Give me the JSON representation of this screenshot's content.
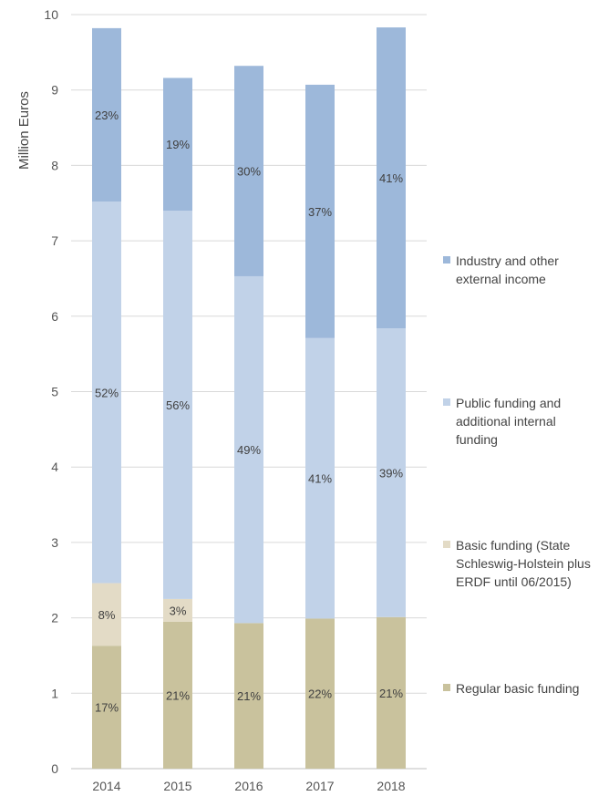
{
  "chart_data": {
    "type": "bar",
    "stacked": true,
    "title": "",
    "xlabel": "",
    "ylabel": "Million Euros",
    "ylim": [
      0,
      10
    ],
    "yticks": [
      0,
      1,
      2,
      3,
      4,
      5,
      6,
      7,
      8,
      9,
      10
    ],
    "categories": [
      "2014",
      "2015",
      "2016",
      "2017",
      "2018"
    ],
    "grid": true,
    "legend_position": "right",
    "series": [
      {
        "name": "Regular basic funding",
        "color": "#c9c29d",
        "values": [
          1.63,
          1.95,
          1.93,
          1.99,
          2.01
        ],
        "labels": [
          "17%",
          "21%",
          "21%",
          "22%",
          "21%"
        ]
      },
      {
        "name": "Basic funding (State Schleswig-Holstein plus ERDF until 06/2015)",
        "color": "#e3dbc6",
        "values": [
          0.83,
          0.3,
          0,
          0,
          0
        ],
        "labels": [
          "8%",
          "3%",
          "",
          "",
          ""
        ]
      },
      {
        "name": "Public funding and additional internal funding",
        "color": "#c1d2e8",
        "values": [
          5.06,
          5.15,
          4.6,
          3.72,
          3.83
        ],
        "labels": [
          "52%",
          "56%",
          "49%",
          "41%",
          "39%"
        ]
      },
      {
        "name": "Industry and other external income",
        "color": "#9db8da",
        "values": [
          2.3,
          1.76,
          2.79,
          3.36,
          3.99
        ],
        "labels": [
          "23%",
          "19%",
          "30%",
          "37%",
          "41%"
        ]
      }
    ]
  },
  "legend": [
    {
      "text": "Industry and other\nexternal income",
      "color": "#9db8da"
    },
    {
      "text": "Public funding and\nadditional internal\nfunding",
      "color": "#c1d2e8"
    },
    {
      "text": "Basic funding (State\nSchleswig-Holstein plus\nERDF until 06/2015)",
      "color": "#e3dbc6"
    },
    {
      "text": "Regular basic funding",
      "color": "#c9c29d"
    }
  ]
}
